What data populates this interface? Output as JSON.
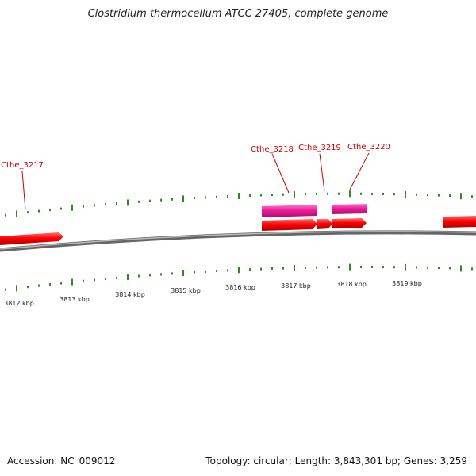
{
  "title": "Clostridium thermocellum ATCC 27405, complete genome",
  "footer": {
    "accession": "Accession: NC_009012",
    "summary": "Topology: circular; Length: 3,843,301 bp; Genes: 3,259"
  },
  "scale_labels": [
    "3812 kbp",
    "3813 kbp",
    "3814 kbp",
    "3815 kbp",
    "3816 kbp",
    "3817 kbp",
    "3818 kbp",
    "3819 kbp"
  ],
  "gene_labels": [
    "Cthe_3217",
    "Cthe_3218",
    "Cthe_3219",
    "Cthe_3220"
  ],
  "colors": {
    "gene": "#ff0000",
    "cds": "#ee1a9a",
    "gene_label": "#cc0000",
    "tick": "#2e8b1f",
    "backbone": "#808080",
    "text": "#222222"
  }
}
